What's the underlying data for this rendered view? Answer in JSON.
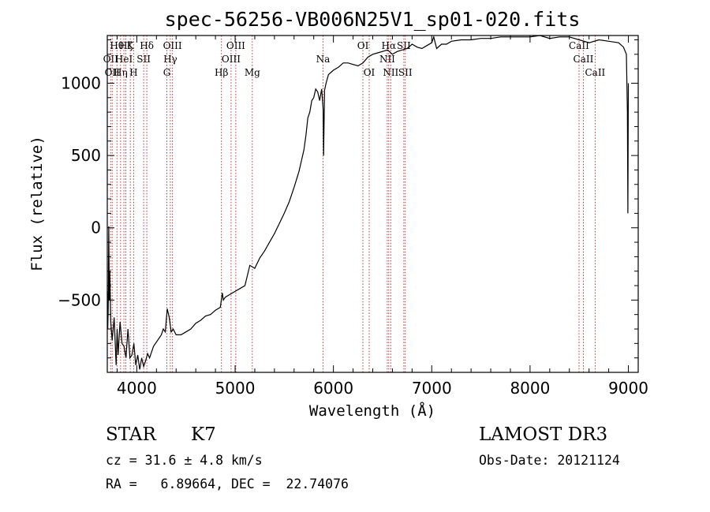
{
  "chart_data": {
    "type": "line",
    "title": "spec-56256-VB006N25V1_sp01-020.fits",
    "xlabel": "Wavelength (Å)",
    "ylabel": "Flux (relative)",
    "xlim": [
      3700,
      9100
    ],
    "ylim": [
      -1000,
      1330
    ],
    "xticks": [
      4000,
      5000,
      6000,
      7000,
      8000,
      9000
    ],
    "xtick_labels": [
      "4000",
      "5000",
      "6000",
      "7000",
      "8000",
      "9000"
    ],
    "yticks": [
      -500,
      0,
      500,
      1000
    ],
    "ytick_labels": [
      "−500",
      "0",
      "500",
      "1000"
    ],
    "series": [
      {
        "name": "flux",
        "x": [
          3700,
          3705,
          3710,
          3715,
          3720,
          3725,
          3735,
          3750,
          3770,
          3790,
          3800,
          3810,
          3830,
          3850,
          3870,
          3890,
          3910,
          3930,
          3950,
          3970,
          3990,
          4010,
          4030,
          4050,
          4070,
          4090,
          4110,
          4130,
          4150,
          4170,
          4190,
          4210,
          4230,
          4250,
          4270,
          4290,
          4310,
          4330,
          4350,
          4370,
          4400,
          4450,
          4500,
          4550,
          4600,
          4650,
          4700,
          4750,
          4800,
          4850,
          4870,
          4880,
          4900,
          4950,
          5000,
          5050,
          5100,
          5150,
          5200,
          5250,
          5300,
          5350,
          5400,
          5450,
          5500,
          5550,
          5600,
          5650,
          5700,
          5720,
          5740,
          5760,
          5780,
          5800,
          5820,
          5840,
          5860,
          5880,
          5895,
          5900,
          5910,
          5925,
          5950,
          6000,
          6050,
          6100,
          6150,
          6200,
          6250,
          6300,
          6350,
          6400,
          6450,
          6500,
          6550,
          6600,
          6650,
          6700,
          6750,
          6800,
          6850,
          6900,
          6950,
          7000,
          7020,
          7050,
          7100,
          7150,
          7200,
          7300,
          7400,
          7500,
          7600,
          7700,
          7800,
          7900,
          8000,
          8100,
          8200,
          8300,
          8400,
          8500,
          8550,
          8600,
          8700,
          8800,
          8900,
          8950,
          8980,
          8990,
          8995,
          9000
        ],
        "values": [
          -440,
          -700,
          -550,
          10,
          -500,
          -300,
          -650,
          -780,
          -620,
          -950,
          -700,
          -880,
          -650,
          -800,
          -820,
          -900,
          -700,
          -900,
          -880,
          -800,
          -950,
          -880,
          -980,
          -900,
          -960,
          -920,
          -870,
          -900,
          -860,
          -820,
          -800,
          -780,
          -760,
          -740,
          -700,
          -720,
          -560,
          -620,
          -720,
          -700,
          -740,
          -740,
          -720,
          -700,
          -660,
          -640,
          -610,
          -600,
          -570,
          -550,
          -450,
          -500,
          -480,
          -460,
          -440,
          -420,
          -400,
          -260,
          -280,
          -210,
          -160,
          -100,
          -40,
          30,
          100,
          180,
          280,
          390,
          540,
          640,
          760,
          800,
          880,
          900,
          960,
          940,
          880,
          960,
          820,
          500,
          950,
          1000,
          1060,
          1090,
          1110,
          1140,
          1140,
          1130,
          1120,
          1140,
          1180,
          1200,
          1210,
          1220,
          1230,
          1200,
          1220,
          1230,
          1240,
          1270,
          1250,
          1240,
          1260,
          1280,
          1320,
          1240,
          1270,
          1270,
          1290,
          1300,
          1300,
          1310,
          1310,
          1320,
          1320,
          1320,
          1320,
          1330,
          1310,
          1320,
          1320,
          1300,
          1290,
          1280,
          1300,
          1290,
          1280,
          1250,
          1200,
          800,
          100,
          1000
        ]
      }
    ],
    "lines": [
      {
        "wl": 3734,
        "label": "OII",
        "row": 2
      },
      {
        "wl": 3750,
        "label": "OII",
        "row": 3
      },
      {
        "wl": 3798,
        "label": "Hθ",
        "row": 1
      },
      {
        "wl": 3835,
        "label": "Hη",
        "row": 3
      },
      {
        "wl": 3869,
        "label": "HeI",
        "row": 2
      },
      {
        "wl": 3889,
        "label": "Hζ",
        "row": 1
      },
      {
        "wl": 3934,
        "label": "K",
        "row": 1
      },
      {
        "wl": 3968,
        "label": "H",
        "row": 3
      },
      {
        "wl": 4070,
        "label": "SII",
        "row": 2
      },
      {
        "wl": 4102,
        "label": "Hδ",
        "row": 1
      },
      {
        "wl": 4306,
        "label": "G",
        "row": 3
      },
      {
        "wl": 4341,
        "label": "Hγ",
        "row": 2
      },
      {
        "wl": 4363,
        "label": "OIII",
        "row": 1
      },
      {
        "wl": 4861,
        "label": "Hβ",
        "row": 3
      },
      {
        "wl": 4959,
        "label": "OIII",
        "row": 2
      },
      {
        "wl": 5007,
        "label": "OIII",
        "row": 1
      },
      {
        "wl": 5175,
        "label": "Mg",
        "row": 3
      },
      {
        "wl": 5894,
        "label": "Na",
        "row": 2
      },
      {
        "wl": 6300,
        "label": "OI",
        "row": 1
      },
      {
        "wl": 6364,
        "label": "OI",
        "row": 3
      },
      {
        "wl": 6548,
        "label": "NII",
        "row": 2
      },
      {
        "wl": 6563,
        "label": "Hα",
        "row": 1
      },
      {
        "wl": 6583,
        "label": "NII",
        "row": 3
      },
      {
        "wl": 6716,
        "label": "SII",
        "row": 1
      },
      {
        "wl": 6731,
        "label": "SII",
        "row": 3
      },
      {
        "wl": 8498,
        "label": "CaII",
        "row": 1
      },
      {
        "wl": 8542,
        "label": "CaII",
        "row": 2
      },
      {
        "wl": 8662,
        "label": "CaII",
        "row": 3
      }
    ]
  },
  "info": {
    "class": "STAR",
    "subclass": "K7",
    "survey": "LAMOST DR3",
    "cz": "cz = 31.6 ± 4.8 km/s",
    "obs_date": "Obs-Date: 20121124",
    "coords": "RA =   6.89664, DEC =  22.74076"
  }
}
